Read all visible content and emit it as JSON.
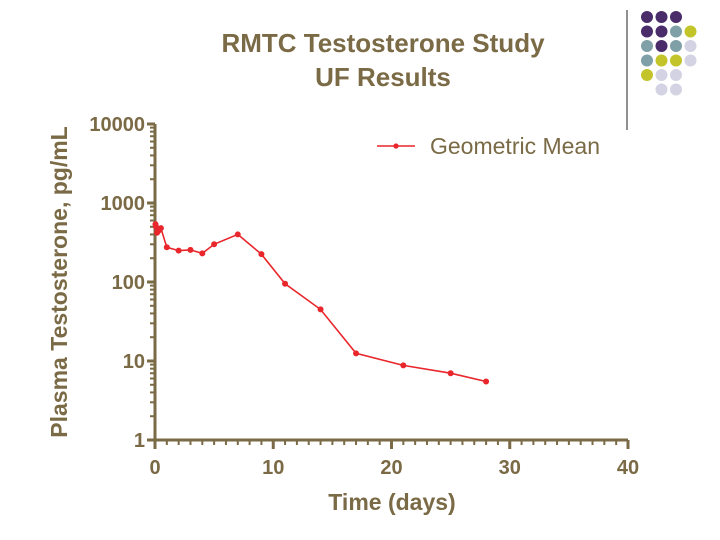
{
  "decor": {
    "dot_colors": [
      "#4a2c6a",
      "#7fa0a6",
      "#c2c42a",
      "#d3d3e3"
    ]
  },
  "chart_data": {
    "type": "line",
    "title": "RMTC Testosterone Study",
    "subtitle": "UF Results",
    "xlabel": "Time (days)",
    "ylabel": "Plasma Testosterone, pg/mL",
    "xlim": [
      0,
      40
    ],
    "ylim": [
      1,
      10000
    ],
    "yscale": "log",
    "xticks": [
      0,
      10,
      20,
      30,
      40
    ],
    "yticks": [
      1,
      10,
      100,
      1000,
      10000
    ],
    "xtick_labels": [
      "0",
      "10",
      "20",
      "30",
      "40"
    ],
    "ytick_labels": [
      "1",
      "10",
      "100",
      "1000",
      "10000"
    ],
    "legend_position": "top-right",
    "colors": {
      "series": "#e8262b",
      "axis": "#7a6a45"
    },
    "series": [
      {
        "name": "Geometric Mean",
        "x": [
          0.04,
          0.08,
          0.17,
          0.25,
          0.33,
          0.5,
          1,
          2,
          3,
          4,
          5,
          7,
          9,
          11,
          14,
          17,
          21,
          25,
          28
        ],
        "y": [
          540,
          500,
          420,
          440,
          450,
          480,
          275,
          250,
          255,
          230,
          300,
          400,
          225,
          95,
          45,
          12.5,
          8.8,
          7,
          5.5
        ]
      }
    ]
  }
}
